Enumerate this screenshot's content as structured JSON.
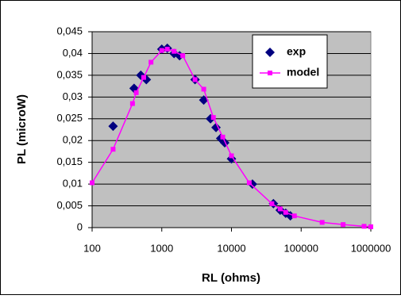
{
  "chart_data": {
    "type": "scatter-line",
    "xlabel": "RL (ohms)",
    "ylabel": "PL (microW)",
    "xscale": "log",
    "xlim": [
      100,
      1000000
    ],
    "xticks": [
      100,
      1000,
      10000,
      100000,
      1000000
    ],
    "ylim": [
      0,
      0.045
    ],
    "yticks": [
      0,
      {
        "value": 0.005,
        "label": "0,005"
      },
      {
        "value": 0.01,
        "label": "0,01"
      },
      {
        "value": 0.015,
        "label": "0,015"
      },
      {
        "value": 0.02,
        "label": "0,02"
      },
      {
        "value": 0.025,
        "label": "0,025"
      },
      {
        "value": 0.03,
        "label": "0,03"
      },
      {
        "value": 0.035,
        "label": "0,035"
      },
      {
        "value": 0.04,
        "label": "0,04"
      },
      {
        "value": 0.045,
        "label": "0,045"
      }
    ],
    "grid": true,
    "legend": "upper right",
    "series": [
      {
        "name": "exp",
        "color": "#000080",
        "marker": "diamond",
        "line": false,
        "x": [
          200,
          400,
          500,
          600,
          1000,
          1200,
          1500,
          1800,
          3000,
          4000,
          5000,
          6000,
          7000,
          8000,
          10000,
          20000,
          40000,
          50000,
          60000,
          70000
        ],
        "values": [
          0.0233,
          0.032,
          0.035,
          0.034,
          0.041,
          0.0412,
          0.04,
          0.0395,
          0.034,
          0.0293,
          0.025,
          0.023,
          0.0205,
          0.0195,
          0.0158,
          0.01,
          0.0055,
          0.004,
          0.0033,
          0.0027
        ]
      },
      {
        "name": "model",
        "color": "#ff00ff",
        "marker": "square",
        "line": true,
        "x": [
          100,
          200,
          380,
          430,
          550,
          700,
          1000,
          1200,
          1500,
          2000,
          3000,
          4000,
          5500,
          7500,
          10000,
          18000,
          38000,
          50000,
          60000,
          80000,
          200000,
          400000,
          800000,
          1000000
        ],
        "values": [
          0.0103,
          0.018,
          0.0285,
          0.031,
          0.0345,
          0.038,
          0.0407,
          0.041,
          0.0405,
          0.0395,
          0.034,
          0.0318,
          0.0253,
          0.0208,
          0.0165,
          0.0103,
          0.0055,
          0.0043,
          0.0035,
          0.0027,
          0.0012,
          0.0007,
          0.0003,
          0.0002
        ]
      }
    ]
  }
}
